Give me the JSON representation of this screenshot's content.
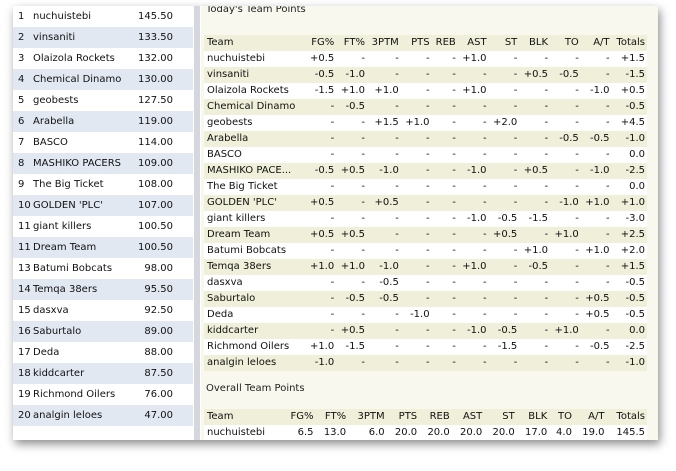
{
  "standings": [
    {
      "rank": "1",
      "name": "nuchuistebi",
      "points": "145.50"
    },
    {
      "rank": "2",
      "name": "vinsaniti",
      "points": "133.50"
    },
    {
      "rank": "3",
      "name": "Olaizola Rockets",
      "points": "132.00"
    },
    {
      "rank": "4",
      "name": "Chemical Dinamo",
      "points": "130.00"
    },
    {
      "rank": "5",
      "name": "geobests",
      "points": "127.50"
    },
    {
      "rank": "6",
      "name": "Arabella",
      "points": "119.00"
    },
    {
      "rank": "7",
      "name": "BASCO",
      "points": "114.00"
    },
    {
      "rank": "8",
      "name": "MASHIKO PACERS",
      "points": "109.00"
    },
    {
      "rank": "9",
      "name": "The Big Ticket",
      "points": "108.00"
    },
    {
      "rank": "10",
      "name": "GOLDEN 'PLC'",
      "points": "107.00"
    },
    {
      "rank": "11",
      "name": "giant killers",
      "points": "100.50"
    },
    {
      "rank": "11",
      "name": "Dream Team",
      "points": "100.50"
    },
    {
      "rank": "13",
      "name": "Batumi Bobcats",
      "points": "98.00"
    },
    {
      "rank": "14",
      "name": "Temqa 38ers",
      "points": "95.50"
    },
    {
      "rank": "15",
      "name": "dasxva",
      "points": "92.50"
    },
    {
      "rank": "16",
      "name": "Saburtalo",
      "points": "89.00"
    },
    {
      "rank": "17",
      "name": "Deda",
      "points": "88.00"
    },
    {
      "rank": "18",
      "name": "kiddcarter",
      "points": "87.50"
    },
    {
      "rank": "19",
      "name": "Richmond Oilers",
      "points": "76.00"
    },
    {
      "rank": "20",
      "name": "analgin leloes",
      "points": "47.00"
    }
  ],
  "today": {
    "title": "Today's Team Points",
    "headers": [
      "Team",
      "FG%",
      "FT%",
      "3PTM",
      "PTS",
      "REB",
      "AST",
      "ST",
      "BLK",
      "TO",
      "A/T",
      "Totals"
    ],
    "rows": [
      [
        "nuchuistebi",
        "+0.5",
        "-",
        "-",
        "-",
        "-",
        "+1.0",
        "-",
        "-",
        "-",
        "-",
        "+1.5"
      ],
      [
        "vinsaniti",
        "-0.5",
        "-1.0",
        "-",
        "-",
        "-",
        "-",
        "-",
        "+0.5",
        "-0.5",
        "-",
        "-1.5"
      ],
      [
        "Olaizola Rockets",
        "-1.5",
        "+1.0",
        "+1.0",
        "-",
        "-",
        "+1.0",
        "-",
        "-",
        "-",
        "-1.0",
        "+0.5"
      ],
      [
        "Chemical Dinamo",
        "-",
        "-0.5",
        "-",
        "-",
        "-",
        "-",
        "-",
        "-",
        "-",
        "-",
        "-0.5"
      ],
      [
        "geobests",
        "-",
        "-",
        "+1.5",
        "+1.0",
        "-",
        "-",
        "+2.0",
        "-",
        "-",
        "-",
        "+4.5"
      ],
      [
        "Arabella",
        "-",
        "-",
        "-",
        "-",
        "-",
        "-",
        "-",
        "-",
        "-0.5",
        "-0.5",
        "-1.0"
      ],
      [
        "BASCO",
        "-",
        "-",
        "-",
        "-",
        "-",
        "-",
        "-",
        "-",
        "-",
        "-",
        "0.0"
      ],
      [
        "MASHIKO PACE...",
        "-0.5",
        "+0.5",
        "-1.0",
        "-",
        "-",
        "-1.0",
        "-",
        "+0.5",
        "-",
        "-1.0",
        "-2.5"
      ],
      [
        "The Big Ticket",
        "-",
        "-",
        "-",
        "-",
        "-",
        "-",
        "-",
        "-",
        "-",
        "-",
        "0.0"
      ],
      [
        "GOLDEN 'PLC'",
        "+0.5",
        "-",
        "+0.5",
        "-",
        "-",
        "-",
        "-",
        "-",
        "-1.0",
        "+1.0",
        "+1.0"
      ],
      [
        "giant killers",
        "-",
        "-",
        "-",
        "-",
        "-",
        "-1.0",
        "-0.5",
        "-1.5",
        "-",
        "-",
        "-3.0"
      ],
      [
        "Dream Team",
        "+0.5",
        "+0.5",
        "-",
        "-",
        "-",
        "-",
        "+0.5",
        "-",
        "+1.0",
        "-",
        "+2.5"
      ],
      [
        "Batumi Bobcats",
        "-",
        "-",
        "-",
        "-",
        "-",
        "-",
        "-",
        "+1.0",
        "-",
        "+1.0",
        "+2.0"
      ],
      [
        "Temqa 38ers",
        "+1.0",
        "+1.0",
        "-1.0",
        "-",
        "-",
        "+1.0",
        "-",
        "-0.5",
        "-",
        "-",
        "+1.5"
      ],
      [
        "dasxva",
        "-",
        "-",
        "-0.5",
        "-",
        "-",
        "-",
        "-",
        "-",
        "-",
        "-",
        "-0.5"
      ],
      [
        "Saburtalo",
        "-",
        "-0.5",
        "-0.5",
        "-",
        "-",
        "-",
        "-",
        "-",
        "-",
        "+0.5",
        "-0.5"
      ],
      [
        "Deda",
        "-",
        "-",
        "-",
        "-1.0",
        "-",
        "-",
        "-",
        "-",
        "-",
        "+0.5",
        "-0.5"
      ],
      [
        "kiddcarter",
        "-",
        "+0.5",
        "-",
        "-",
        "-",
        "-1.0",
        "-0.5",
        "-",
        "+1.0",
        "-",
        "0.0"
      ],
      [
        "Richmond Oilers",
        "+1.0",
        "-1.5",
        "-",
        "-",
        "-",
        "-",
        "-1.5",
        "-",
        "-",
        "-0.5",
        "-2.5"
      ],
      [
        "analgin leloes",
        "-1.0",
        "-",
        "-",
        "-",
        "-",
        "-",
        "-",
        "-",
        "-",
        "-",
        "-1.0"
      ]
    ]
  },
  "overall": {
    "title": "Overall Team Points",
    "headers": [
      "Team",
      "FG%",
      "FT%",
      "3PTM",
      "PTS",
      "REB",
      "AST",
      "ST",
      "BLK",
      "TO",
      "A/T",
      "Totals"
    ],
    "rows": [
      [
        "nuchuistebi",
        "6.5",
        "13.0",
        "6.0",
        "20.0",
        "20.0",
        "20.0",
        "20.0",
        "17.0",
        "4.0",
        "19.0",
        "145.5"
      ]
    ]
  }
}
